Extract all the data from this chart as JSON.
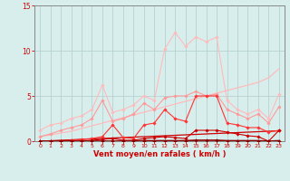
{
  "x": [
    0,
    1,
    2,
    3,
    4,
    5,
    6,
    7,
    8,
    9,
    10,
    11,
    12,
    13,
    14,
    15,
    16,
    17,
    18,
    19,
    20,
    21,
    22,
    23
  ],
  "series": [
    {
      "name": "line1_pink_lightest",
      "color": "#ffbbbb",
      "lw": 0.8,
      "marker": "D",
      "markersize": 1.8,
      "y": [
        1.2,
        1.8,
        2.0,
        2.5,
        2.8,
        3.5,
        6.2,
        3.2,
        3.5,
        4.0,
        5.0,
        4.5,
        10.2,
        12.0,
        10.5,
        11.5,
        11.0,
        11.5,
        4.5,
        3.5,
        3.0,
        3.5,
        2.5,
        5.2
      ]
    },
    {
      "name": "line2_pink_medium",
      "color": "#ff9999",
      "lw": 0.8,
      "marker": "D",
      "markersize": 1.8,
      "y": [
        0.5,
        0.8,
        1.2,
        1.5,
        1.8,
        2.5,
        4.5,
        2.2,
        2.5,
        3.0,
        4.2,
        3.5,
        4.8,
        5.0,
        5.0,
        5.5,
        5.0,
        5.2,
        3.5,
        3.0,
        2.5,
        3.0,
        2.0,
        3.8
      ]
    },
    {
      "name": "line3_pink_slope",
      "color": "#ffbbbb",
      "lw": 0.9,
      "marker": null,
      "markersize": 0,
      "y": [
        0.5,
        0.7,
        0.9,
        1.1,
        1.4,
        1.7,
        2.0,
        2.3,
        2.6,
        2.9,
        3.2,
        3.5,
        3.8,
        4.1,
        4.4,
        4.7,
        5.0,
        5.3,
        5.6,
        5.9,
        6.2,
        6.5,
        7.0,
        8.0
      ]
    },
    {
      "name": "line4_red_bright",
      "color": "#ff3333",
      "lw": 0.8,
      "marker": "D",
      "markersize": 1.8,
      "y": [
        0.0,
        0.0,
        0.0,
        0.1,
        0.2,
        0.3,
        0.5,
        1.8,
        0.4,
        0.3,
        1.8,
        2.0,
        3.5,
        2.5,
        2.2,
        5.0,
        5.0,
        5.0,
        2.0,
        1.8,
        1.5,
        1.5,
        1.0,
        1.2
      ]
    },
    {
      "name": "line5_dark_red_slope",
      "color": "#cc0000",
      "lw": 0.9,
      "marker": null,
      "markersize": 0,
      "y": [
        0.0,
        0.05,
        0.1,
        0.15,
        0.2,
        0.25,
        0.3,
        0.35,
        0.4,
        0.45,
        0.5,
        0.55,
        0.6,
        0.65,
        0.7,
        0.75,
        0.8,
        0.85,
        0.9,
        0.95,
        1.0,
        1.05,
        1.1,
        1.15
      ]
    },
    {
      "name": "line6_dark_red",
      "color": "#cc0000",
      "lw": 0.8,
      "marker": "D",
      "markersize": 1.8,
      "y": [
        0.0,
        0.0,
        0.0,
        0.0,
        0.0,
        0.1,
        0.2,
        0.3,
        0.1,
        0.1,
        0.3,
        0.4,
        0.5,
        0.4,
        0.3,
        1.2,
        1.2,
        1.2,
        1.0,
        0.8,
        0.6,
        0.5,
        0.0,
        1.2
      ]
    },
    {
      "name": "line7_darkest_red_flat",
      "color": "#880000",
      "lw": 1.2,
      "marker": "D",
      "markersize": 1.8,
      "y": [
        0.0,
        0.0,
        0.0,
        0.0,
        0.0,
        0.0,
        0.0,
        0.0,
        0.0,
        0.0,
        0.05,
        0.05,
        0.05,
        0.05,
        0.05,
        0.1,
        0.1,
        0.1,
        0.05,
        0.05,
        0.05,
        0.05,
        0.0,
        0.05
      ]
    }
  ],
  "xlabel": "Vent moyen/en rafales ( km/h )",
  "ylim": [
    0,
    15
  ],
  "xlim": [
    -0.5,
    23.5
  ],
  "yticks": [
    0,
    5,
    10,
    15
  ],
  "xticks": [
    0,
    1,
    2,
    3,
    4,
    5,
    6,
    7,
    8,
    9,
    10,
    11,
    12,
    13,
    14,
    15,
    16,
    17,
    18,
    19,
    20,
    21,
    22,
    23
  ],
  "bg_color": "#d8eeed",
  "grid_color": "#b0cccc",
  "xlabel_color": "#cc0000",
  "tick_color": "#cc0000",
  "axis_color": "#888888",
  "figsize": [
    3.2,
    2.0
  ],
  "dpi": 100
}
